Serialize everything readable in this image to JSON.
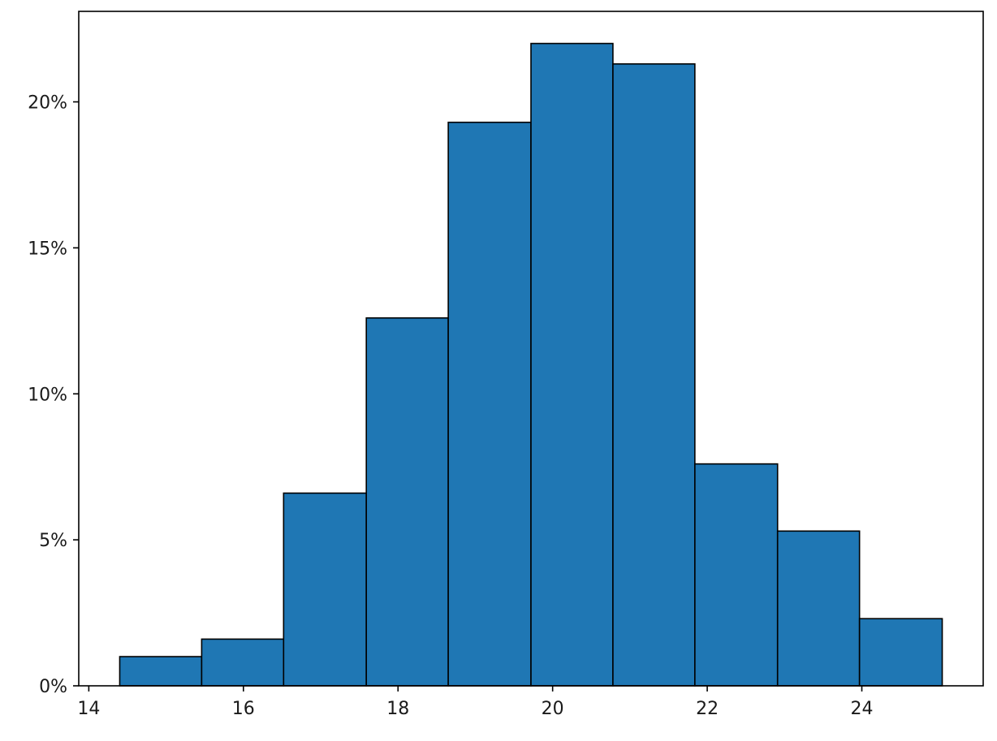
{
  "chart_data": {
    "type": "bar",
    "bins": [
      {
        "start": 14.4,
        "end": 15.46,
        "value": 1.0
      },
      {
        "start": 15.46,
        "end": 16.52,
        "value": 1.6
      },
      {
        "start": 16.52,
        "end": 17.59,
        "value": 6.6
      },
      {
        "start": 17.59,
        "end": 18.65,
        "value": 12.6
      },
      {
        "start": 18.65,
        "end": 19.72,
        "value": 19.3
      },
      {
        "start": 19.72,
        "end": 20.78,
        "value": 22.0
      },
      {
        "start": 20.78,
        "end": 21.84,
        "value": 21.3
      },
      {
        "start": 21.84,
        "end": 22.91,
        "value": 7.6
      },
      {
        "start": 22.91,
        "end": 23.97,
        "value": 5.3
      },
      {
        "start": 23.97,
        "end": 25.04,
        "value": 2.3
      }
    ],
    "title": "",
    "xlabel": "",
    "ylabel": "",
    "xlim": [
      13.87,
      25.57
    ],
    "ylim": [
      0,
      23.1
    ],
    "x_ticks": [
      {
        "value": 14,
        "label": "14"
      },
      {
        "value": 16,
        "label": "16"
      },
      {
        "value": 18,
        "label": "18"
      },
      {
        "value": 20,
        "label": "20"
      },
      {
        "value": 22,
        "label": "22"
      },
      {
        "value": 24,
        "label": "24"
      }
    ],
    "y_ticks": [
      {
        "value": 0,
        "label": "0%"
      },
      {
        "value": 5,
        "label": "5%"
      },
      {
        "value": 10,
        "label": "10%"
      },
      {
        "value": 15,
        "label": "15%"
      },
      {
        "value": 20,
        "label": "20%"
      }
    ],
    "grid": false,
    "bar_color": "#1f77b4",
    "edge_color": "#000000"
  }
}
